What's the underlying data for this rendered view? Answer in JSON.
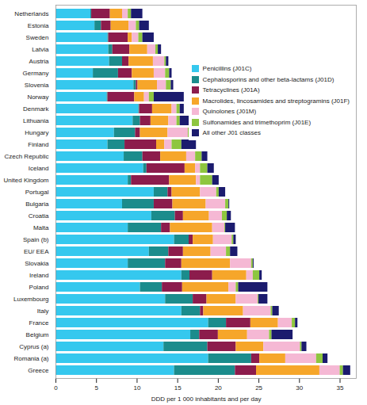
{
  "chart_data": {
    "type": "bar",
    "orientation": "horizontal",
    "stacked": true,
    "grid": false,
    "legend": "top-right",
    "x_label": "DDD per 1 000 inhabitants and per day",
    "xlim": [
      0,
      37
    ],
    "xticks": [
      0,
      5,
      10,
      15,
      20,
      25,
      30,
      35
    ],
    "categories": [
      "Netherlands",
      "Estonia",
      "Sweden",
      "Latvia",
      "Austria",
      "Germany",
      "Slovenia",
      "Norway",
      "Denmark",
      "Lithuania",
      "Hungary",
      "Finland",
      "Czech Republic",
      "Iceland",
      "United Kingdom",
      "Portugal",
      "Bulgaria",
      "Croatia",
      "Malta",
      "Spain (b)",
      "EU/ EEA",
      "Slovakia",
      "Ireland",
      "Poland",
      "Luxembourg",
      "Italy",
      "France",
      "Belgium",
      "Cyprus (a)",
      "Romania (a)",
      "Greece"
    ],
    "series": [
      {
        "name": "Penicillins (J01C)",
        "color": "#35c8ee",
        "values": [
          4.3,
          4.8,
          6.4,
          6.5,
          6.6,
          4.6,
          9.6,
          6.3,
          10.2,
          9.5,
          7.2,
          6.4,
          8.4,
          10.8,
          8.9,
          12.1,
          8.2,
          11.8,
          8.9,
          14.6,
          11.5,
          8.9,
          15.5,
          10.4,
          13.5,
          15.5,
          18.8,
          16.6,
          13.3,
          18.8,
          14.6
        ]
      },
      {
        "name": "Cephalosporins and other beta-lactams (J01D)",
        "color": "#1b8c8c",
        "values": [
          0.1,
          0.8,
          0.1,
          0.5,
          1.6,
          3.1,
          0.3,
          0.1,
          0.1,
          0.9,
          2.6,
          2.1,
          2.3,
          0.4,
          0.4,
          1.7,
          3.9,
          2.9,
          4.1,
          1.8,
          2.4,
          4.6,
          1.0,
          2.7,
          3.4,
          2.3,
          2.2,
          1.1,
          5.4,
          5.3,
          7.5
        ]
      },
      {
        "name": "Tetracyclines (J01A)",
        "color": "#8c1c4c",
        "values": [
          2.3,
          1.2,
          2.4,
          2.1,
          0.8,
          1.7,
          0.2,
          3.3,
          1.6,
          1.3,
          0.6,
          3.9,
          2.2,
          4.7,
          4.7,
          0.5,
          2.3,
          1.0,
          1.1,
          0.5,
          1.8,
          2.0,
          2.8,
          2.5,
          1.7,
          0.4,
          3.0,
          2.3,
          3.5,
          1.0,
          2.6
        ]
      },
      {
        "name": "Macrolides, lincosamides and streptogramins (J01F)",
        "color": "#f6a62a",
        "values": [
          1.5,
          2.2,
          0.5,
          2.2,
          3.0,
          2.7,
          2.4,
          1.2,
          2.4,
          2.2,
          3.4,
          1.0,
          3.2,
          1.3,
          3.3,
          3.5,
          4.1,
          3.2,
          5.2,
          2.5,
          3.4,
          6.0,
          4.2,
          5.7,
          3.6,
          4.9,
          3.4,
          3.6,
          3.4,
          3.2,
          7.8
        ]
      },
      {
        "name": "Quinolones (J01M)",
        "color": "#f5b8d4",
        "values": [
          0.7,
          0.9,
          0.8,
          1.0,
          1.4,
          1.4,
          1.1,
          0.6,
          0.6,
          1.0,
          2.5,
          0.9,
          1.1,
          0.6,
          0.5,
          2.0,
          2.4,
          1.6,
          1.5,
          2.3,
          1.9,
          2.6,
          0.8,
          0.9,
          2.7,
          3.4,
          1.7,
          2.7,
          4.5,
          3.8,
          2.5
        ]
      },
      {
        "name": "Sulfonamides and trimethoprim (J01E)",
        "color": "#8ec63f",
        "values": [
          0.4,
          0.4,
          0.5,
          0.3,
          0.2,
          0.5,
          0.6,
          0.6,
          0.4,
          0.4,
          0.5,
          1.2,
          0.8,
          0.9,
          1.5,
          0.3,
          0.4,
          0.6,
          0.1,
          0.2,
          0.5,
          0.2,
          0.8,
          0.3,
          0.1,
          0.2,
          0.4,
          0.3,
          0.2,
          0.8,
          0.4
        ]
      },
      {
        "name": "All other J01 classes",
        "color": "#1b1b6e",
        "values": [
          1.4,
          1.2,
          1.4,
          0.4,
          0.3,
          0.3,
          0.3,
          3.7,
          0.5,
          1.4,
          0.2,
          1.8,
          0.7,
          0.8,
          0.8,
          0.8,
          0.1,
          0.5,
          1.2,
          0.3,
          0.9,
          0.1,
          0.3,
          3.6,
          1.1,
          0.8,
          0.3,
          2.6,
          0.6,
          0.6,
          0.9
        ]
      }
    ]
  }
}
